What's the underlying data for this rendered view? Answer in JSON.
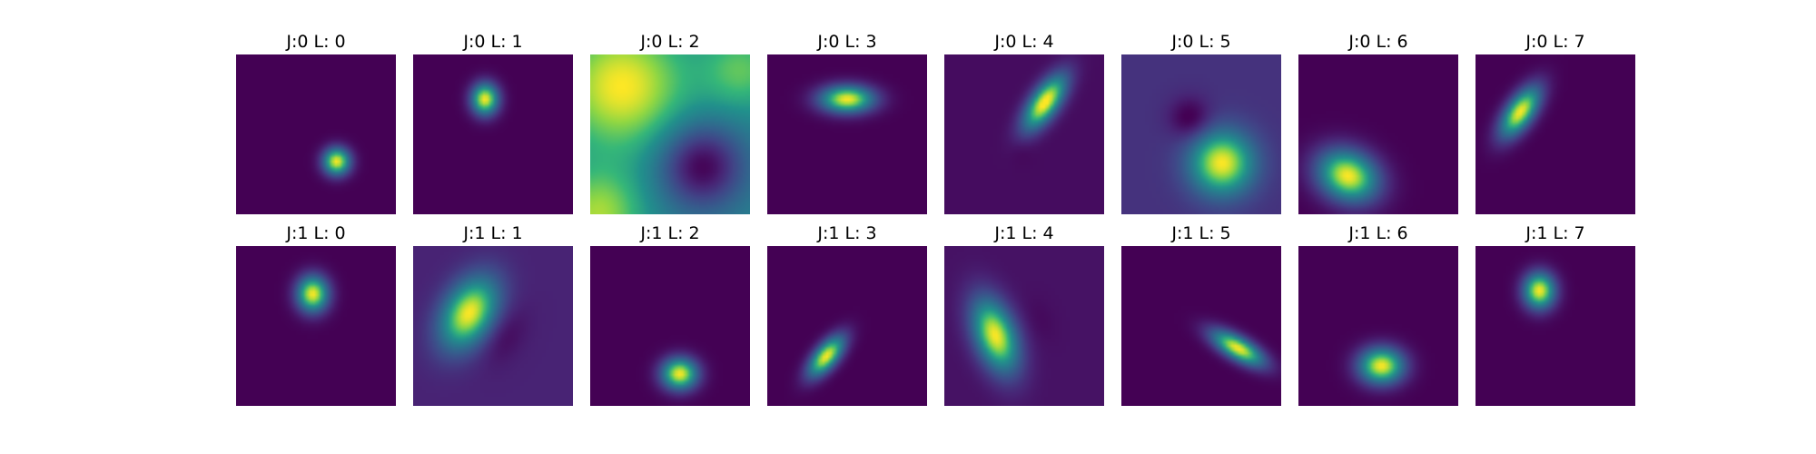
{
  "chart_data": {
    "type": "heatmap",
    "colormap": "viridis",
    "panels": [
      {
        "title": "J:0 L: 0",
        "background": 0.0,
        "blobs": [
          {
            "x": 0.63,
            "y": 0.67,
            "sx": 0.06,
            "sy": 0.06,
            "angle": 0,
            "amp": 1.0
          }
        ]
      },
      {
        "title": "J:0 L: 1",
        "background": 0.0,
        "blobs": [
          {
            "x": 0.45,
            "y": 0.28,
            "sx": 0.06,
            "sy": 0.07,
            "angle": 0,
            "amp": 1.0
          }
        ]
      },
      {
        "title": "J:0 L: 2",
        "background": 0.55,
        "blobs": [
          {
            "x": 0.2,
            "y": 0.2,
            "sx": 0.28,
            "sy": 0.28,
            "angle": 0,
            "amp": 0.45
          },
          {
            "x": 0.95,
            "y": 0.1,
            "sx": 0.18,
            "sy": 0.18,
            "angle": 0,
            "amp": 0.25
          },
          {
            "x": 0.05,
            "y": 1.0,
            "sx": 0.2,
            "sy": 0.2,
            "angle": 0,
            "amp": 0.35
          },
          {
            "x": 0.7,
            "y": 0.7,
            "sx": 0.18,
            "sy": 0.18,
            "angle": 0,
            "amp": -0.55
          }
        ]
      },
      {
        "title": "J:0 L: 3",
        "background": 0.0,
        "blobs": [
          {
            "x": 0.5,
            "y": 0.28,
            "sx": 0.12,
            "sy": 0.06,
            "angle": 0,
            "amp": 1.0
          }
        ]
      },
      {
        "title": "J:0 L: 4",
        "background": 0.04,
        "blobs": [
          {
            "x": 0.63,
            "y": 0.3,
            "sx": 0.06,
            "sy": 0.14,
            "angle": 35,
            "amp": 1.0
          },
          {
            "x": 0.48,
            "y": 0.6,
            "sx": 0.05,
            "sy": 0.06,
            "angle": 0,
            "amp": -0.03
          }
        ]
      },
      {
        "title": "J:0 L: 5",
        "background": 0.18,
        "blobs": [
          {
            "x": 0.63,
            "y": 0.68,
            "sx": 0.14,
            "sy": 0.14,
            "angle": 0,
            "amp": 0.82
          },
          {
            "x": 0.43,
            "y": 0.4,
            "sx": 0.09,
            "sy": 0.09,
            "angle": 0,
            "amp": -0.22
          }
        ]
      },
      {
        "title": "J:0 L: 6",
        "background": 0.0,
        "blobs": [
          {
            "x": 0.31,
            "y": 0.76,
            "sx": 0.14,
            "sy": 0.11,
            "angle": 25,
            "amp": 1.0
          }
        ]
      },
      {
        "title": "J:0 L: 7",
        "background": 0.0,
        "blobs": [
          {
            "x": 0.28,
            "y": 0.36,
            "sx": 0.06,
            "sy": 0.13,
            "angle": 35,
            "amp": 1.0
          }
        ]
      },
      {
        "title": "J:1 L: 0",
        "background": 0.0,
        "blobs": [
          {
            "x": 0.48,
            "y": 0.3,
            "sx": 0.07,
            "sy": 0.08,
            "angle": 0,
            "amp": 1.0
          }
        ]
      },
      {
        "title": "J:1 L: 1",
        "background": 0.12,
        "blobs": [
          {
            "x": 0.35,
            "y": 0.42,
            "sx": 0.11,
            "sy": 0.17,
            "angle": 30,
            "amp": 0.88
          },
          {
            "x": 0.57,
            "y": 0.56,
            "sx": 0.08,
            "sy": 0.13,
            "angle": 30,
            "amp": -0.1
          }
        ]
      },
      {
        "title": "J:1 L: 2",
        "background": 0.0,
        "blobs": [
          {
            "x": 0.56,
            "y": 0.8,
            "sx": 0.08,
            "sy": 0.07,
            "angle": 0,
            "amp": 1.0
          }
        ]
      },
      {
        "title": "J:1 L: 3",
        "background": 0.0,
        "blobs": [
          {
            "x": 0.37,
            "y": 0.69,
            "sx": 0.05,
            "sy": 0.11,
            "angle": 40,
            "amp": 1.0
          }
        ]
      },
      {
        "title": "J:1 L: 4",
        "background": 0.06,
        "blobs": [
          {
            "x": 0.32,
            "y": 0.56,
            "sx": 0.09,
            "sy": 0.17,
            "angle": -20,
            "amp": 0.94
          },
          {
            "x": 0.6,
            "y": 0.46,
            "sx": 0.06,
            "sy": 0.1,
            "angle": -20,
            "amp": -0.03
          }
        ]
      },
      {
        "title": "J:1 L: 5",
        "background": 0.0,
        "blobs": [
          {
            "x": 0.73,
            "y": 0.64,
            "sx": 0.13,
            "sy": 0.05,
            "angle": 30,
            "amp": 1.0
          }
        ]
      },
      {
        "title": "J:1 L: 6",
        "background": 0.0,
        "blobs": [
          {
            "x": 0.52,
            "y": 0.75,
            "sx": 0.1,
            "sy": 0.08,
            "angle": 0,
            "amp": 1.0
          }
        ]
      },
      {
        "title": "J:1 L: 7",
        "background": 0.0,
        "blobs": [
          {
            "x": 0.4,
            "y": 0.28,
            "sx": 0.07,
            "sy": 0.08,
            "angle": 0,
            "amp": 1.0
          }
        ]
      }
    ]
  }
}
